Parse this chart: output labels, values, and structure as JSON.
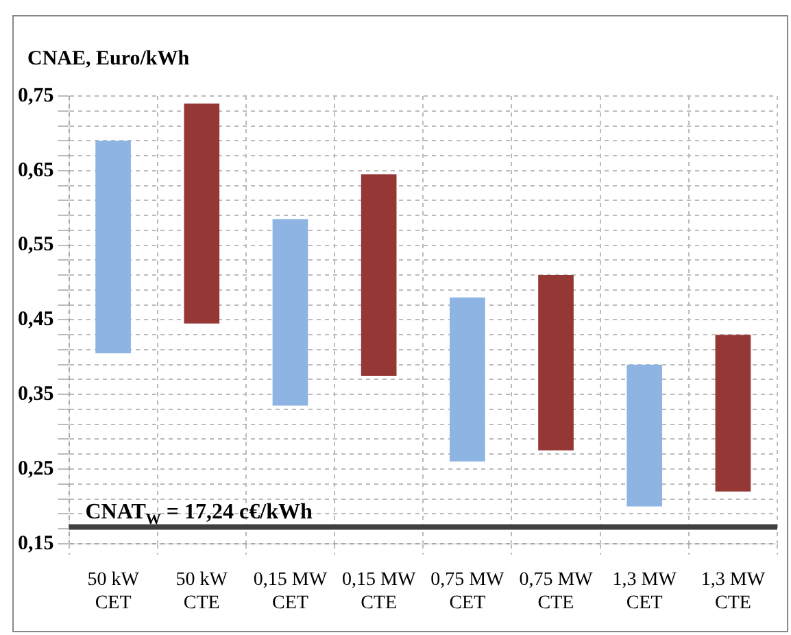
{
  "chart_data": {
    "type": "bar",
    "ylabel": "CNAE, Euro/kWh",
    "categories": [
      "50 kW\nCET",
      "50 kW\nCTE",
      "0,15 MW\nCET",
      "0,15 MW\nCTE",
      "0,75 MW\nCET",
      "0,75 MW\nCTE",
      "1,3 MW\nCET",
      "1,3 MW\nCTE"
    ],
    "base": [
      0.405,
      0.445,
      0.335,
      0.375,
      0.26,
      0.275,
      0.2,
      0.22
    ],
    "values": [
      0.285,
      0.295,
      0.25,
      0.27,
      0.22,
      0.235,
      0.19,
      0.21
    ],
    "colors": [
      "#8db4e2",
      "#953735",
      "#8db4e2",
      "#953735",
      "#8db4e2",
      "#953735",
      "#8db4e2",
      "#953735"
    ],
    "ylim": [
      0.15,
      0.75
    ],
    "yticks": [
      {
        "value": 0.15,
        "label": "0,15"
      },
      {
        "value": 0.17,
        "label": null
      },
      {
        "value": 0.19,
        "label": null
      },
      {
        "value": 0.21,
        "label": null
      },
      {
        "value": 0.23,
        "label": null
      },
      {
        "value": 0.25,
        "label": "0,25"
      },
      {
        "value": 0.27,
        "label": null
      },
      {
        "value": 0.29,
        "label": null
      },
      {
        "value": 0.31,
        "label": null
      },
      {
        "value": 0.33,
        "label": null
      },
      {
        "value": 0.35,
        "label": "0,35"
      },
      {
        "value": 0.37,
        "label": null
      },
      {
        "value": 0.39,
        "label": null
      },
      {
        "value": 0.41,
        "label": null
      },
      {
        "value": 0.43,
        "label": null
      },
      {
        "value": 0.45,
        "label": "0,45"
      },
      {
        "value": 0.47,
        "label": null
      },
      {
        "value": 0.49,
        "label": null
      },
      {
        "value": 0.51,
        "label": null
      },
      {
        "value": 0.53,
        "label": null
      },
      {
        "value": 0.55,
        "label": "0,55"
      },
      {
        "value": 0.57,
        "label": null
      },
      {
        "value": 0.59,
        "label": null
      },
      {
        "value": 0.61,
        "label": null
      },
      {
        "value": 0.63,
        "label": null
      },
      {
        "value": 0.65,
        "label": "0,65"
      },
      {
        "value": 0.67,
        "label": null
      },
      {
        "value": 0.69,
        "label": null
      },
      {
        "value": 0.71,
        "label": null
      },
      {
        "value": 0.73,
        "label": null
      },
      {
        "value": 0.75,
        "label": "0,75"
      }
    ],
    "ref_lines": [
      {
        "axis": "y",
        "value": 0.1724,
        "label": "CNAT$_{W}$ = 17,24 c€/kWh",
        "color": "#404040"
      }
    ],
    "grid": true,
    "legend": false
  }
}
